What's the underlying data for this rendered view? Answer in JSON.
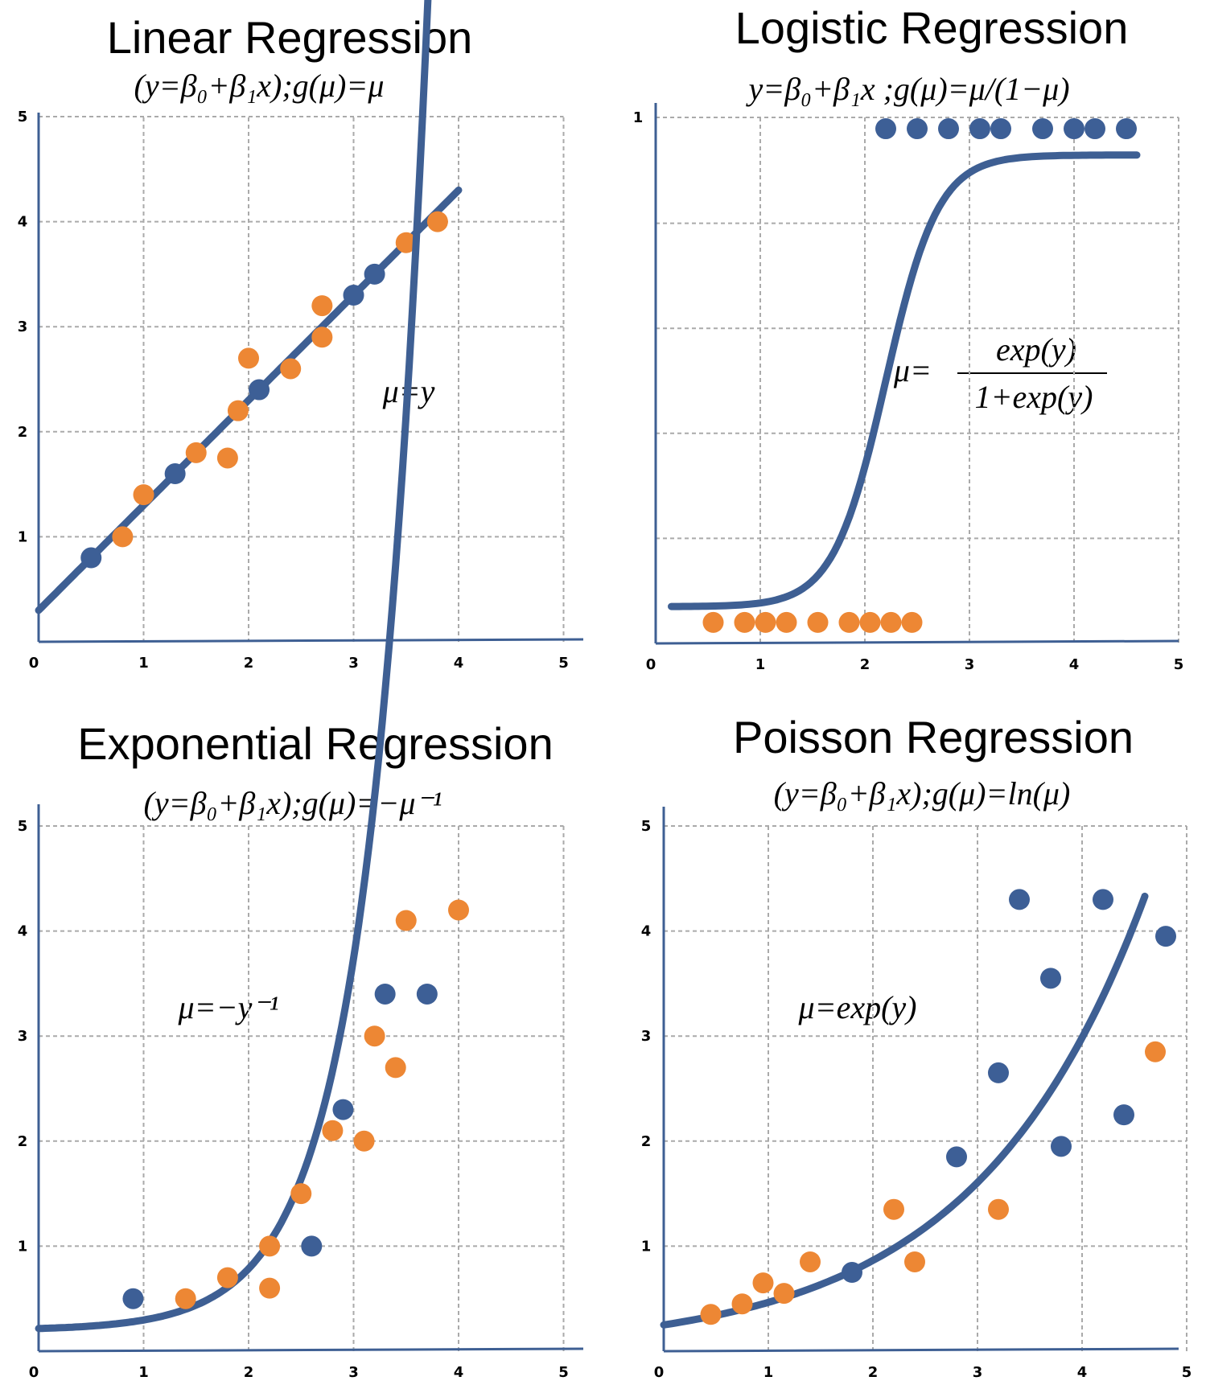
{
  "colors": {
    "blue": "#3d5f96",
    "orange": "#ed8734",
    "axis": "#3e5f93",
    "grid": "#aaaaaa"
  },
  "chart_data": [
    {
      "type": "scatter",
      "title": "Linear Regression",
      "subtitle": "(y=β₀+β₁x);g(μ)=μ",
      "annotation": "μ=y",
      "xlim": [
        0,
        5
      ],
      "ylim": [
        0,
        5
      ],
      "xticks": [
        "0",
        "1",
        "2",
        "3",
        "4",
        "5"
      ],
      "yticks": [
        "1",
        "2",
        "3",
        "4",
        "5"
      ],
      "grid": true,
      "fit": {
        "model": "linear",
        "a": 0.3,
        "b": 1.0,
        "x_range": [
          0,
          4
        ]
      },
      "series": [
        {
          "color": "blue",
          "x": [
            0.5,
            1.3,
            2.1,
            3.0,
            3.2
          ],
          "y": [
            0.8,
            1.6,
            2.4,
            3.3,
            3.5
          ]
        },
        {
          "color": "orange",
          "x": [
            0.8,
            1.0,
            1.5,
            1.8,
            1.9,
            2.0,
            2.4,
            2.7,
            2.7,
            3.5,
            3.8
          ],
          "y": [
            1.0,
            1.4,
            1.8,
            1.75,
            2.2,
            2.7,
            2.6,
            2.9,
            3.2,
            3.8,
            4.0
          ]
        }
      ]
    },
    {
      "type": "scatter",
      "title": "Logistic Regression",
      "subtitle": "y=β₀+β₁x ;g(μ)=μ/(1−μ)",
      "annotation_left": "μ=",
      "annotation_num": "exp(y)",
      "annotation_den": "1+exp(y)",
      "xlim": [
        0,
        5
      ],
      "ylim": [
        0,
        1
      ],
      "xticks": [
        "0",
        "1",
        "2",
        "3",
        "4",
        "5"
      ],
      "yticks": [
        "1"
      ],
      "grid": true,
      "fit": {
        "model": "logistic",
        "low": 0.07,
        "high": 0.93,
        "mid": 2.2,
        "k": 4,
        "x_range": [
          0.15,
          4.6
        ]
      },
      "series": [
        {
          "color": "blue",
          "x": [
            2.2,
            2.5,
            2.8,
            3.1,
            3.3,
            3.7,
            4.0,
            4.2,
            4.5
          ],
          "y": [
            0.98,
            0.98,
            0.98,
            0.98,
            0.98,
            0.98,
            0.98,
            0.98,
            0.98
          ]
        },
        {
          "color": "orange",
          "x": [
            0.55,
            0.85,
            1.05,
            1.25,
            1.55,
            1.85,
            2.05,
            2.25,
            2.45
          ],
          "y": [
            0.04,
            0.04,
            0.04,
            0.04,
            0.04,
            0.04,
            0.04,
            0.04,
            0.04
          ]
        }
      ]
    },
    {
      "type": "scatter",
      "title": "Exponential Regression",
      "subtitle": "(y=β₀+β₁x);g(μ)=−μ⁻¹",
      "annotation": "μ=−y⁻¹",
      "xlim": [
        0,
        5
      ],
      "ylim": [
        0,
        5
      ],
      "xticks": [
        "0",
        "1",
        "2",
        "3",
        "4",
        "5"
      ],
      "yticks": [
        "1",
        "2",
        "3",
        "4",
        "5"
      ],
      "grid": true,
      "fit": {
        "model": "exponential",
        "a": 0.2,
        "c": 0.016,
        "k": 1.8,
        "x_range": [
          0,
          3.85
        ]
      },
      "series": [
        {
          "color": "blue",
          "x": [
            0.9,
            2.6,
            2.9,
            3.3,
            3.7
          ],
          "y": [
            0.5,
            1.0,
            2.3,
            3.4,
            3.4
          ]
        },
        {
          "color": "orange",
          "x": [
            1.4,
            1.8,
            2.2,
            2.2,
            2.5,
            2.8,
            3.1,
            3.2,
            3.4,
            3.5,
            4.0
          ],
          "y": [
            0.5,
            0.7,
            0.6,
            1.0,
            1.5,
            2.1,
            2.0,
            3.0,
            2.7,
            4.1,
            4.2
          ]
        }
      ]
    },
    {
      "type": "scatter",
      "title": "Poisson Regression",
      "subtitle": "(y=β₀+β₁x);g(μ)=ln(μ)",
      "annotation": "μ=exp(y)",
      "xlim": [
        0,
        5
      ],
      "ylim": [
        0,
        5
      ],
      "xticks": [
        "0",
        "1",
        "2",
        "3",
        "4",
        "5"
      ],
      "yticks": [
        "1",
        "2",
        "3",
        "4",
        "5"
      ],
      "grid": true,
      "fit": {
        "model": "poisson",
        "a": 0.25,
        "k": 0.62,
        "x_range": [
          0,
          4.6
        ]
      },
      "series": [
        {
          "color": "blue",
          "x": [
            1.8,
            2.8,
            3.2,
            3.4,
            3.7,
            3.8,
            4.2,
            4.4,
            4.8
          ],
          "y": [
            0.75,
            1.85,
            2.65,
            4.3,
            3.55,
            1.95,
            4.3,
            2.25,
            3.95
          ]
        },
        {
          "color": "orange",
          "x": [
            0.45,
            0.75,
            0.95,
            1.15,
            1.4,
            2.2,
            2.4,
            3.2,
            4.7
          ],
          "y": [
            0.35,
            0.45,
            0.65,
            0.55,
            0.85,
            1.35,
            0.85,
            1.35,
            2.85
          ]
        }
      ]
    }
  ]
}
